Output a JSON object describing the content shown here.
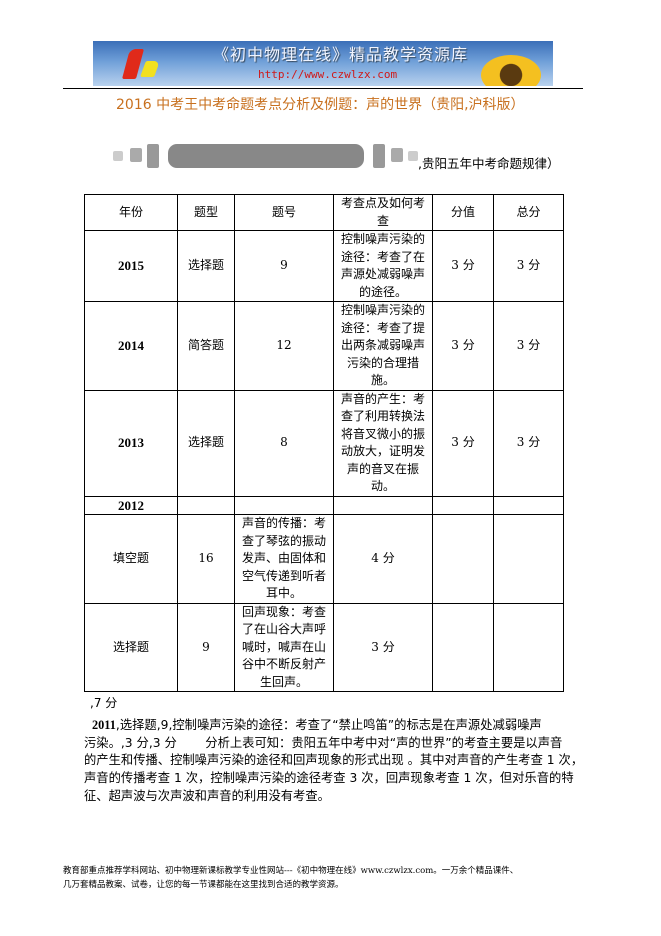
{
  "banner": {
    "title": "《初中物理在线》精品教学资源库",
    "url": "http://www.czwlzx.com"
  },
  "title": "2016 中考王中考命题考点分析及例题：声的世界（贵阳,沪科版）",
  "subtitle": ",贵阳五年中考命题规律）",
  "table": {
    "headers": [
      "年份",
      "题型",
      "题号",
      "考查点及如何考查",
      "分值",
      "总分"
    ],
    "rows": [
      [
        "2015",
        "选择题",
        "9",
        "控制噪声污染的途径：考查了在声源处减弱噪声的途径。",
        "3 分",
        "3 分"
      ],
      [
        "2014",
        "简答题",
        "12",
        "控制噪声污染的途径：考查了提出两条减弱噪声污染的合理措施。",
        "3 分",
        "3 分"
      ],
      [
        "2013",
        "选择题",
        "8",
        "声音的产生：考查了利用转换法将音叉微小的振动放大，证明发声的音叉在振动。",
        "3 分",
        "3 分"
      ],
      [
        "2012",
        "",
        "",
        "",
        "",
        ""
      ],
      [
        "填空题",
        "16",
        "声音的传播：考查了琴弦的振动发声、由固体和空气传递到听者耳中。",
        "4 分",
        "",
        ""
      ],
      [
        "选择题",
        "9",
        "回声现象：考查了在山谷大声呼喊时，喊声在山谷中不断反射产生回声。",
        "3 分",
        "",
        ""
      ]
    ]
  },
  "note": ",7 分",
  "paragraph": {
    "bold_lead": "2011",
    "lines": [
      ",选择题,9,控制噪声污染的途径：考查了“禁止鸣笛”的标志是在声源处减弱噪声",
      "污染。,3 分,3 分　　 分析上表可知：贵阳五年中考中对“声的世界”的考查主要是以声音",
      "的产生和传播、控制噪声污染的途径和回声现象的形式出现 。其中对声音的产生考查 1 次，",
      "声音的传播考查 1 次，控制噪声污染的途径考查 3 次，回声现象考查 1 次，但对乐音的特",
      "征、超声波与次声波和声音的利用没有考查。"
    ]
  },
  "footer": [
    "教育部重点推荐学科网站、初中物理新课标教学专业性网站---《初中物理在线》www.czwlzx.com。一万余个精品课件、",
    "几万套精品教案、试卷，让您的每一节课都能在这里找到合适的教学资源。"
  ]
}
